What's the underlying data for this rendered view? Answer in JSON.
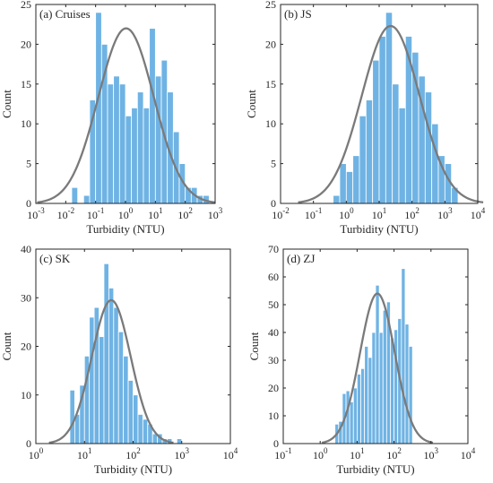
{
  "colors": {
    "bar": "#6fb3e4",
    "bar_edge": "#ffffff",
    "curve": "#7a7a7a",
    "axis": "#262626"
  },
  "chart_data": [
    {
      "type": "bar",
      "title": "(a) Cruises",
      "xlabel": "Turbidity (NTU)",
      "ylabel": "Count",
      "xscale": "log",
      "xlim_exp": [
        -3,
        3
      ],
      "ylim": [
        0,
        25
      ],
      "yticks": [
        "0",
        "5",
        "10",
        "15",
        "20",
        "25"
      ],
      "xticks": [
        {
          "base": "10",
          "exp": "-3"
        },
        {
          "base": "10",
          "exp": "-2"
        },
        {
          "base": "10",
          "exp": "-1"
        },
        {
          "base": "10",
          "exp": "0"
        },
        {
          "base": "10",
          "exp": "1"
        },
        {
          "base": "10",
          "exp": "2"
        },
        {
          "base": "10",
          "exp": "3"
        }
      ],
      "bin_start_exp": -1.8,
      "bin_width_exp": 0.2,
      "values": [
        2,
        0,
        1,
        13,
        24,
        20,
        15,
        16,
        15,
        11,
        12,
        14,
        12,
        22,
        16,
        18,
        14,
        9,
        5,
        2,
        2,
        1,
        1
      ],
      "fit": {
        "mu_exp": 0.02,
        "sigma_exp": 0.93,
        "peak": 22
      }
    },
    {
      "type": "bar",
      "title": "(b) JS",
      "xlabel": "Turbidity (NTU)",
      "ylabel": "Count",
      "xscale": "log",
      "xlim_exp": [
        -2,
        4
      ],
      "ylim": [
        0,
        25
      ],
      "yticks": [
        "0",
        "5",
        "10",
        "15",
        "20",
        "25"
      ],
      "xticks": [
        {
          "base": "10",
          "exp": "-2"
        },
        {
          "base": "10",
          "exp": "-1"
        },
        {
          "base": "10",
          "exp": "0"
        },
        {
          "base": "10",
          "exp": "1"
        },
        {
          "base": "10",
          "exp": "2"
        },
        {
          "base": "10",
          "exp": "3"
        },
        {
          "base": "10",
          "exp": "4"
        }
      ],
      "bin_start_exp": -0.4,
      "bin_width_exp": 0.2,
      "values": [
        1,
        5,
        4,
        6,
        11,
        13,
        18,
        21,
        24,
        15,
        12,
        21,
        19,
        16,
        14,
        10,
        6,
        5,
        2
      ],
      "fit": {
        "mu_exp": 1.35,
        "sigma_exp": 0.88,
        "peak": 22.3
      }
    },
    {
      "type": "bar",
      "title": "(c) SK",
      "xlabel": "Turbidity (NTU)",
      "ylabel": "Count",
      "xscale": "log",
      "xlim_exp": [
        0,
        4
      ],
      "ylim": [
        0,
        40
      ],
      "yticks": [
        "0",
        "10",
        "20",
        "30",
        "40"
      ],
      "xticks": [
        {
          "base": "10",
          "exp": "0"
        },
        {
          "base": "10",
          "exp": "1"
        },
        {
          "base": "10",
          "exp": "2"
        },
        {
          "base": "10",
          "exp": "3"
        },
        {
          "base": "10",
          "exp": "4"
        }
      ],
      "bin_start_exp": 0.7,
      "bin_width_exp": 0.1,
      "values": [
        11,
        6,
        12,
        18,
        26,
        28,
        22,
        37,
        32,
        28,
        23,
        18,
        13,
        10,
        6,
        5,
        4,
        2,
        2,
        1,
        1,
        0,
        1
      ],
      "fit": {
        "mu_exp": 1.55,
        "sigma_exp": 0.4,
        "peak": 29.5
      }
    },
    {
      "type": "bar",
      "title": "(d) ZJ",
      "xlabel": "Turbidity (NTU)",
      "ylabel": "Count",
      "xscale": "log",
      "xlim_exp": [
        -1,
        4
      ],
      "ylim": [
        0,
        70
      ],
      "yticks": [
        "0",
        "10",
        "20",
        "30",
        "40",
        "50",
        "60",
        "70"
      ],
      "xticks": [
        {
          "base": "10",
          "exp": "-1"
        },
        {
          "base": "10",
          "exp": "0"
        },
        {
          "base": "10",
          "exp": "1"
        },
        {
          "base": "10",
          "exp": "2"
        },
        {
          "base": "10",
          "exp": "3"
        },
        {
          "base": "10",
          "exp": "4"
        }
      ],
      "bin_start_exp": 0.4,
      "bin_width_exp": 0.1,
      "values": [
        7,
        8,
        18,
        19,
        15,
        20,
        25,
        27,
        35,
        31,
        40,
        57,
        40,
        48,
        51,
        38,
        41,
        45,
        63,
        43,
        35
      ],
      "fit": {
        "mu_exp": 1.55,
        "sigma_exp": 0.47,
        "peak": 54
      }
    }
  ]
}
